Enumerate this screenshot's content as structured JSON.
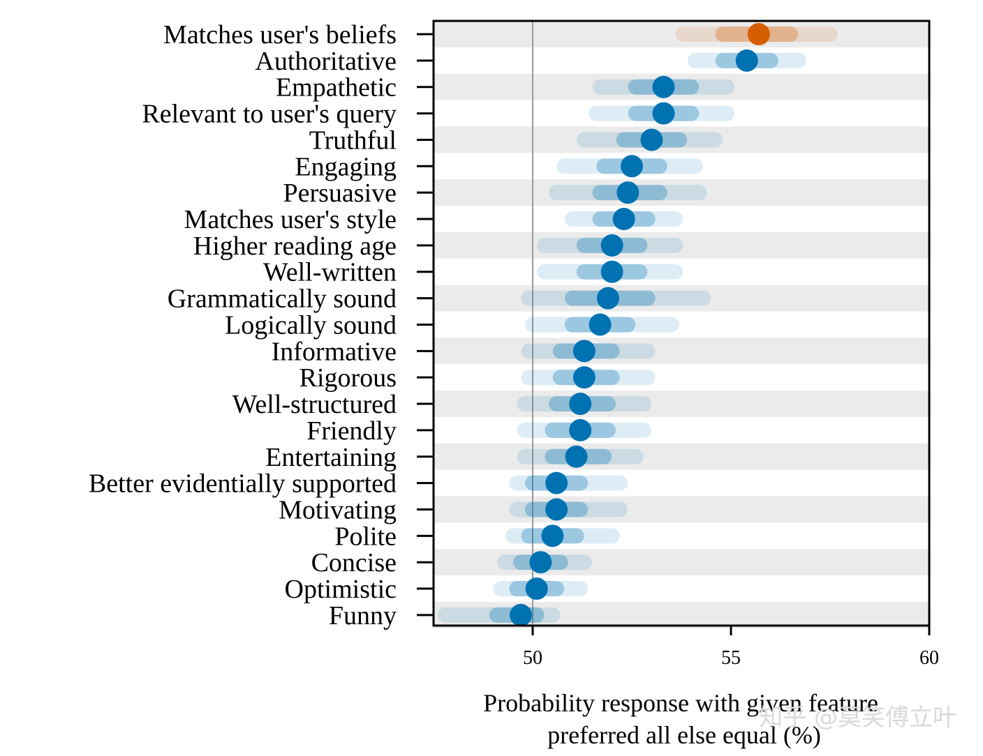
{
  "chart_data": {
    "type": "scatter",
    "title": "",
    "xlabel_lines": [
      "Probability response with given feature",
      "preferred all else equal (%)"
    ],
    "ylabel": "",
    "xlim": [
      47.5,
      60
    ],
    "xticks": [
      50,
      55,
      60
    ],
    "xtick_labels": [
      "50",
      "55",
      "60"
    ],
    "reference_line": 50,
    "colors": {
      "highlight": "#d55e00",
      "default": "#0072b2",
      "band_even": "#ebebeb",
      "band_odd": "#ffffff"
    },
    "series": [
      {
        "label": "Matches user's beliefs",
        "value": 55.7,
        "inner": [
          54.8,
          56.5
        ],
        "outer": [
          53.8,
          57.5
        ],
        "highlight": true
      },
      {
        "label": "Authoritative",
        "value": 55.4,
        "inner": [
          54.8,
          56.0
        ],
        "outer": [
          54.1,
          56.7
        ],
        "highlight": false
      },
      {
        "label": "Empathetic",
        "value": 53.3,
        "inner": [
          52.6,
          54.0
        ],
        "outer": [
          51.7,
          54.9
        ],
        "highlight": false
      },
      {
        "label": "Relevant to user's query",
        "value": 53.3,
        "inner": [
          52.6,
          54.0
        ],
        "outer": [
          51.6,
          54.9
        ],
        "highlight": false
      },
      {
        "label": "Truthful",
        "value": 53.0,
        "inner": [
          52.3,
          53.7
        ],
        "outer": [
          51.3,
          54.6
        ],
        "highlight": false
      },
      {
        "label": "Engaging",
        "value": 52.5,
        "inner": [
          51.8,
          53.2
        ],
        "outer": [
          50.8,
          54.1
        ],
        "highlight": false
      },
      {
        "label": "Persuasive",
        "value": 52.4,
        "inner": [
          51.7,
          53.2
        ],
        "outer": [
          50.6,
          54.2
        ],
        "highlight": false
      },
      {
        "label": "Matches user's style",
        "value": 52.3,
        "inner": [
          51.7,
          52.9
        ],
        "outer": [
          51.0,
          53.6
        ],
        "highlight": false
      },
      {
        "label": "Higher reading age",
        "value": 52.0,
        "inner": [
          51.3,
          52.7
        ],
        "outer": [
          50.3,
          53.6
        ],
        "highlight": false
      },
      {
        "label": "Well-written",
        "value": 52.0,
        "inner": [
          51.3,
          52.7
        ],
        "outer": [
          50.3,
          53.6
        ],
        "highlight": false
      },
      {
        "label": "Grammatically sound",
        "value": 51.9,
        "inner": [
          51.0,
          52.9
        ],
        "outer": [
          49.9,
          54.3
        ],
        "highlight": false
      },
      {
        "label": "Logically sound",
        "value": 51.7,
        "inner": [
          51.0,
          52.4
        ],
        "outer": [
          50.0,
          53.5
        ],
        "highlight": false
      },
      {
        "label": "Informative",
        "value": 51.3,
        "inner": [
          50.7,
          52.0
        ],
        "outer": [
          49.9,
          52.9
        ],
        "highlight": false
      },
      {
        "label": "Rigorous",
        "value": 51.3,
        "inner": [
          50.7,
          52.0
        ],
        "outer": [
          49.9,
          52.9
        ],
        "highlight": false
      },
      {
        "label": "Well-structured",
        "value": 51.2,
        "inner": [
          50.6,
          51.9
        ],
        "outer": [
          49.8,
          52.8
        ],
        "highlight": false
      },
      {
        "label": "Friendly",
        "value": 51.2,
        "inner": [
          50.5,
          51.9
        ],
        "outer": [
          49.8,
          52.8
        ],
        "highlight": false
      },
      {
        "label": "Entertaining",
        "value": 51.1,
        "inner": [
          50.5,
          51.8
        ],
        "outer": [
          49.8,
          52.6
        ],
        "highlight": false
      },
      {
        "label": "Better evidentially supported",
        "value": 50.6,
        "inner": [
          50.0,
          51.2
        ],
        "outer": [
          49.6,
          52.2
        ],
        "highlight": false
      },
      {
        "label": "Motivating",
        "value": 50.6,
        "inner": [
          50.0,
          51.2
        ],
        "outer": [
          49.6,
          52.2
        ],
        "highlight": false
      },
      {
        "label": "Polite",
        "value": 50.5,
        "inner": [
          49.9,
          51.1
        ],
        "outer": [
          49.5,
          52.0
        ],
        "highlight": false
      },
      {
        "label": "Concise",
        "value": 50.2,
        "inner": [
          49.7,
          50.7
        ],
        "outer": [
          49.3,
          51.3
        ],
        "highlight": false
      },
      {
        "label": "Optimistic",
        "value": 50.1,
        "inner": [
          49.6,
          50.6
        ],
        "outer": [
          49.2,
          51.2
        ],
        "highlight": false
      },
      {
        "label": "Funny",
        "value": 49.7,
        "inner": [
          49.1,
          50.1
        ],
        "outer": [
          47.8,
          50.5
        ],
        "highlight": false
      }
    ]
  },
  "watermark": "知乎 @莫笑傅立叶"
}
